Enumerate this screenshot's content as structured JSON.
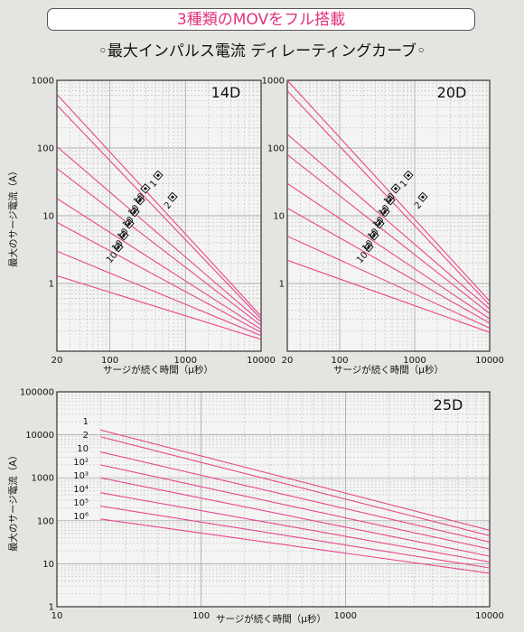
{
  "header": {
    "banner": "3種類のMOVをフル搭載",
    "subtitle": "◦最大インパルス電流 ディレーティングカーブ◦"
  },
  "colors": {
    "curve": "#e8468e",
    "banner_text": "#e0327c",
    "background": "#e4e4e1",
    "plot_bg": "#f4f4f2"
  },
  "chart_data": [
    {
      "type": "line",
      "title": "14D",
      "xlabel": "サージが続く時間（μ秒）",
      "ylabel": "最大のサージ電流（A）",
      "xscale": "log",
      "yscale": "log",
      "xlim": [
        20,
        10000
      ],
      "ylim": [
        0.1,
        1000
      ],
      "xticks": [
        "20",
        "100",
        "1000",
        "10000"
      ],
      "yticks": [
        "1",
        "10",
        "100",
        "1000"
      ],
      "grid": true,
      "series_labels": [
        "1",
        "2",
        "10",
        "10",
        "10",
        "10",
        "10",
        "10"
      ],
      "series": [
        {
          "x": [
            20,
            10000
          ],
          "y": [
            620,
            0.33
          ]
        },
        {
          "x": [
            20,
            10000
          ],
          "y": [
            430,
            0.3
          ]
        },
        {
          "x": [
            20,
            10000
          ],
          "y": [
            105,
            0.27
          ]
        },
        {
          "x": [
            20,
            10000
          ],
          "y": [
            50,
            0.24
          ]
        },
        {
          "x": [
            20,
            10000
          ],
          "y": [
            18,
            0.21
          ]
        },
        {
          "x": [
            20,
            10000
          ],
          "y": [
            8,
            0.19
          ]
        },
        {
          "x": [
            20,
            10000
          ],
          "y": [
            3,
            0.17
          ]
        },
        {
          "x": [
            20,
            10000
          ],
          "y": [
            1.3,
            0.15
          ]
        }
      ]
    },
    {
      "type": "line",
      "title": "20D",
      "xlabel": "サージが続く時間（μ秒）",
      "xscale": "log",
      "yscale": "log",
      "xlim": [
        20,
        10000
      ],
      "ylim": [
        0.1,
        1000
      ],
      "xticks": [
        "20",
        "100",
        "1000",
        "10000"
      ],
      "yticks": [
        "1",
        "10",
        "100",
        "1000"
      ],
      "grid": true,
      "series_labels": [
        "1",
        "2",
        "10",
        "10",
        "10",
        "10",
        "10",
        "10"
      ],
      "series": [
        {
          "x": [
            20,
            10000
          ],
          "y": [
            1000,
            0.55
          ]
        },
        {
          "x": [
            20,
            10000
          ],
          "y": [
            700,
            0.48
          ]
        },
        {
          "x": [
            20,
            10000
          ],
          "y": [
            160,
            0.42
          ]
        },
        {
          "x": [
            20,
            10000
          ],
          "y": [
            80,
            0.36
          ]
        },
        {
          "x": [
            20,
            10000
          ],
          "y": [
            30,
            0.3
          ]
        },
        {
          "x": [
            20,
            10000
          ],
          "y": [
            13,
            0.26
          ]
        },
        {
          "x": [
            20,
            10000
          ],
          "y": [
            5,
            0.22
          ]
        },
        {
          "x": [
            20,
            10000
          ],
          "y": [
            2.2,
            0.19
          ]
        }
      ]
    },
    {
      "type": "line",
      "title": "25D",
      "xlabel": "サージが続く時間（μ秒）",
      "ylabel": "最大のサージ電流（A）",
      "xscale": "log",
      "yscale": "log",
      "xlim": [
        10,
        10000
      ],
      "ylim": [
        1,
        100000
      ],
      "xticks": [
        "10",
        "100",
        "1000",
        "10000"
      ],
      "yticks": [
        "1",
        "10",
        "100",
        "1000",
        "10000",
        "100000"
      ],
      "grid": true,
      "series_labels": [
        "1",
        "2",
        "10",
        "10²",
        "10³",
        "10⁴",
        "10⁵",
        "10⁶"
      ],
      "series": [
        {
          "x": [
            20,
            10000
          ],
          "y": [
            13000,
            60
          ]
        },
        {
          "x": [
            20,
            10000
          ],
          "y": [
            9000,
            45
          ]
        },
        {
          "x": [
            20,
            10000
          ],
          "y": [
            4000,
            32
          ]
        },
        {
          "x": [
            20,
            10000
          ],
          "y": [
            2000,
            22
          ]
        },
        {
          "x": [
            20,
            10000
          ],
          "y": [
            1000,
            15
          ]
        },
        {
          "x": [
            20,
            10000
          ],
          "y": [
            450,
            11
          ]
        },
        {
          "x": [
            20,
            10000
          ],
          "y": [
            220,
            8
          ]
        },
        {
          "x": [
            20,
            10000
          ],
          "y": [
            110,
            6
          ]
        }
      ]
    }
  ]
}
